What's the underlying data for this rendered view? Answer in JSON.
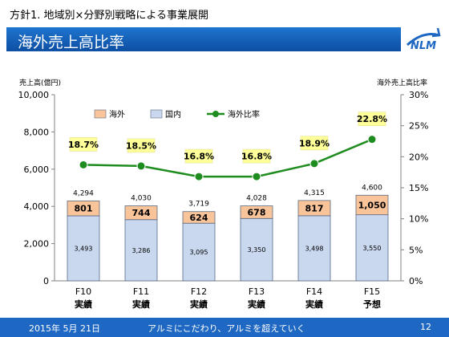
{
  "header": {
    "title": "方針1. 地域別×分野別戦略による事業展開"
  },
  "banner": {
    "title": "海外売上高比率"
  },
  "logo": {
    "text": "NLM"
  },
  "chart_data": {
    "type": "bar",
    "stacked": true,
    "categories": [
      [
        "F10",
        "実績"
      ],
      [
        "F11",
        "実績"
      ],
      [
        "F12",
        "実績"
      ],
      [
        "F13",
        "実績"
      ],
      [
        "F14",
        "実績"
      ],
      [
        "F15",
        "予想"
      ]
    ],
    "series": [
      {
        "name": "国内",
        "values": [
          3493,
          3286,
          3095,
          3350,
          3498,
          3550
        ],
        "labels": [
          "3,493",
          "3,286",
          "3,095",
          "3,350",
          "3,498",
          "3,550"
        ],
        "color": "#c9d8ef"
      },
      {
        "name": "海外",
        "values": [
          801,
          744,
          624,
          678,
          817,
          1050
        ],
        "labels": [
          "801",
          "744",
          "624",
          "678",
          "817",
          "1,050"
        ],
        "color": "#f9c49a"
      }
    ],
    "totals": {
      "values": [
        4294,
        4030,
        3719,
        4028,
        4315,
        4600
      ],
      "labels": [
        "4,294",
        "4,030",
        "3,719",
        "4,028",
        "4,315",
        "4,600"
      ]
    },
    "line": {
      "name": "海外比率",
      "values": [
        18.7,
        18.5,
        16.8,
        16.8,
        18.9,
        22.8
      ],
      "labels": [
        "18.7%",
        "18.5%",
        "16.8%",
        "16.8%",
        "18.9%",
        "22.8%"
      ],
      "color": "#1e8c1e"
    },
    "legend_order": [
      "海外",
      "国内",
      "海外比率"
    ],
    "ylabel": "売上高(億円)",
    "ylim": [
      0,
      10000
    ],
    "yticks": [
      "0",
      "2,000",
      "4,000",
      "6,000",
      "8,000",
      "10,000"
    ],
    "y2label": "海外売上高比率",
    "y2lim": [
      0,
      30
    ],
    "y2ticks": [
      "0%",
      "5%",
      "10%",
      "15%",
      "20%",
      "25%",
      "30%"
    ],
    "legend": "top",
    "grid": false
  },
  "footer": {
    "date": "2015年 5月 21日",
    "slogan": "アルミにこだわり、アルミを超えていく",
    "page": "12"
  }
}
